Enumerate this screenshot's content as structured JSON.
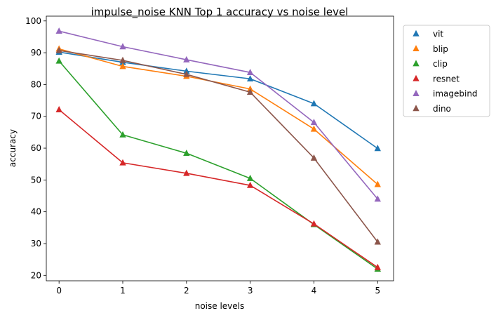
{
  "chart_data": {
    "type": "line",
    "title": "impulse_noise KNN Top 1 accuracy vs noise level",
    "xlabel": "noise levels",
    "ylabel": "accuracy",
    "x": [
      0,
      1,
      2,
      3,
      4,
      5
    ],
    "xticks": [
      0,
      1,
      2,
      3,
      4,
      5
    ],
    "yticks": [
      20,
      30,
      40,
      50,
      60,
      70,
      80,
      90,
      100
    ],
    "xlim": [
      -0.2,
      5.25
    ],
    "ylim": [
      18.3,
      101.5
    ],
    "grid": false,
    "legend_position": "outside-right-top",
    "marker": "triangle-up",
    "series": [
      {
        "name": "vit",
        "color": "#1f77b4",
        "values": [
          90.2,
          87.0,
          84.2,
          81.8,
          74.0,
          59.9
        ]
      },
      {
        "name": "blip",
        "color": "#ff7f0e",
        "values": [
          91.2,
          85.7,
          82.6,
          78.6,
          66.0,
          48.6
        ]
      },
      {
        "name": "clip",
        "color": "#2ca02c",
        "values": [
          87.4,
          64.2,
          58.4,
          50.5,
          36.0,
          22.0
        ]
      },
      {
        "name": "resnet",
        "color": "#d62728",
        "values": [
          72.1,
          55.4,
          52.1,
          48.3,
          36.2,
          22.5
        ]
      },
      {
        "name": "imagebind",
        "color": "#9467bd",
        "values": [
          96.8,
          91.9,
          87.8,
          83.8,
          68.1,
          44.0
        ]
      },
      {
        "name": "dino",
        "color": "#8c564b",
        "values": [
          90.7,
          87.6,
          83.2,
          77.6,
          56.9,
          30.5
        ]
      }
    ]
  }
}
